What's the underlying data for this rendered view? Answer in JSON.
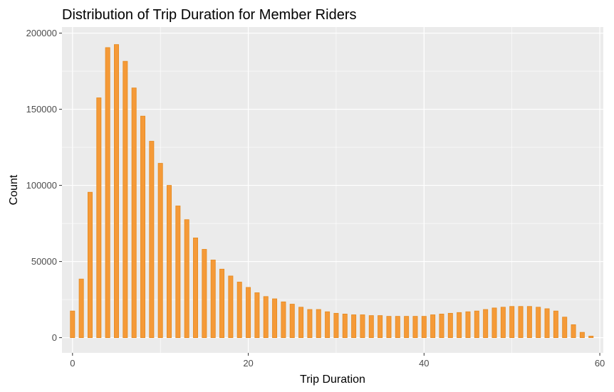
{
  "chart_data": {
    "type": "bar",
    "title": "Distribution of Trip Duration for Member Riders",
    "xlabel": "Trip Duration",
    "ylabel": "Count",
    "xlim": [
      -1.2,
      60.4
    ],
    "ylim": [
      -10000,
      204000
    ],
    "xticks": [
      0,
      20,
      40,
      60
    ],
    "yticks": [
      0,
      50000,
      100000,
      150000,
      200000
    ],
    "xtick_labels": [
      "0",
      "20",
      "40",
      "60"
    ],
    "ytick_labels": [
      "0",
      "50000",
      "100000",
      "150000",
      "200000"
    ],
    "grid": true,
    "legend": "none",
    "colors": {
      "panel": "#ebebeb",
      "grid": "#ffffff",
      "bar_fill": "#f59a38",
      "bar_stroke": "#e58a1f"
    },
    "x": [
      0,
      1,
      2,
      3,
      4,
      5,
      6,
      7,
      8,
      9,
      10,
      11,
      12,
      13,
      14,
      15,
      16,
      17,
      18,
      19,
      20,
      21,
      22,
      23,
      24,
      25,
      26,
      27,
      28,
      29,
      30,
      31,
      32,
      33,
      34,
      35,
      36,
      37,
      38,
      39,
      40,
      41,
      42,
      43,
      44,
      45,
      46,
      47,
      48,
      49,
      50,
      51,
      52,
      53,
      54,
      55,
      56,
      57,
      58,
      59
    ],
    "values": [
      17500,
      38500,
      95500,
      157500,
      190500,
      192500,
      181500,
      164000,
      145500,
      129000,
      114500,
      100000,
      86500,
      77500,
      65500,
      58000,
      51000,
      45000,
      40500,
      36500,
      33000,
      29500,
      27000,
      25500,
      23500,
      22000,
      20000,
      18500,
      18500,
      17000,
      16000,
      15500,
      15000,
      15000,
      14500,
      14500,
      14000,
      14000,
      14000,
      14000,
      14000,
      15000,
      15500,
      16000,
      16500,
      17000,
      17500,
      18500,
      19500,
      20000,
      20500,
      20500,
      20500,
      20000,
      19000,
      17500,
      13500,
      8500,
      3500,
      1000
    ]
  }
}
